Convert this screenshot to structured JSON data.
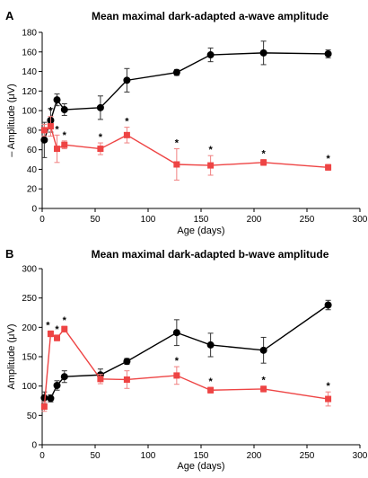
{
  "chart_data": [
    {
      "type": "line",
      "panel": "A",
      "title": "Mean maximal dark-adapted a-wave amplitude",
      "xlabel": "Age (days)",
      "ylabel": "– Amplitude (μV)",
      "xlim": [
        0,
        300
      ],
      "ylim": [
        0,
        180
      ],
      "xticks": [
        0,
        50,
        100,
        150,
        200,
        250,
        300
      ],
      "yticks": [
        0,
        20,
        40,
        60,
        80,
        100,
        120,
        140,
        160,
        180
      ],
      "grid": false,
      "series": [
        {
          "color": "#000000",
          "marker": "circle",
          "x": [
            2,
            8,
            14,
            21,
            55,
            80,
            127,
            159,
            209,
            270
          ],
          "y": [
            70,
            90,
            111,
            101,
            103,
            131,
            139,
            157,
            159,
            158
          ],
          "err": [
            18,
            12,
            6,
            6,
            12,
            12,
            3,
            7,
            12,
            4
          ]
        },
        {
          "color": "#ee4444",
          "marker": "square",
          "x": [
            2,
            8,
            14,
            21,
            55,
            80,
            127,
            159,
            209,
            270
          ],
          "y": [
            80,
            84,
            61,
            65,
            61,
            75,
            45,
            44,
            47,
            42
          ],
          "err": [
            6,
            10,
            14,
            4,
            6,
            8,
            16,
            10,
            3,
            3
          ],
          "significant": [
            false,
            true,
            true,
            true,
            true,
            true,
            true,
            true,
            true,
            true
          ]
        }
      ],
      "annotation_mark": "*"
    },
    {
      "type": "line",
      "panel": "B",
      "title": "Mean maximal dark-adapted b-wave amplitude",
      "xlabel": "Age (days)",
      "ylabel": "Amplitude (μV)",
      "xlim": [
        0,
        300
      ],
      "ylim": [
        0,
        300
      ],
      "xticks": [
        0,
        50,
        100,
        150,
        200,
        250,
        300
      ],
      "yticks": [
        0,
        50,
        100,
        150,
        200,
        250,
        300
      ],
      "grid": false,
      "series": [
        {
          "color": "#000000",
          "marker": "circle",
          "x": [
            2,
            8,
            14,
            21,
            55,
            80,
            127,
            159,
            209,
            270
          ],
          "y": [
            80,
            79,
            101,
            116,
            119,
            142,
            191,
            170,
            161,
            238
          ],
          "err": [
            10,
            6,
            8,
            10,
            10,
            5,
            22,
            20,
            22,
            8
          ]
        },
        {
          "color": "#ee4444",
          "marker": "square",
          "x": [
            2,
            8,
            14,
            21,
            55,
            80,
            127,
            159,
            209,
            270
          ],
          "y": [
            65,
            189,
            182,
            197,
            112,
            111,
            118,
            93,
            95,
            78
          ],
          "err": [
            8,
            5,
            5,
            5,
            8,
            15,
            15,
            5,
            5,
            12
          ],
          "significant": [
            false,
            true,
            true,
            true,
            false,
            false,
            true,
            true,
            true,
            true
          ]
        }
      ],
      "annotation_mark": "*"
    }
  ]
}
